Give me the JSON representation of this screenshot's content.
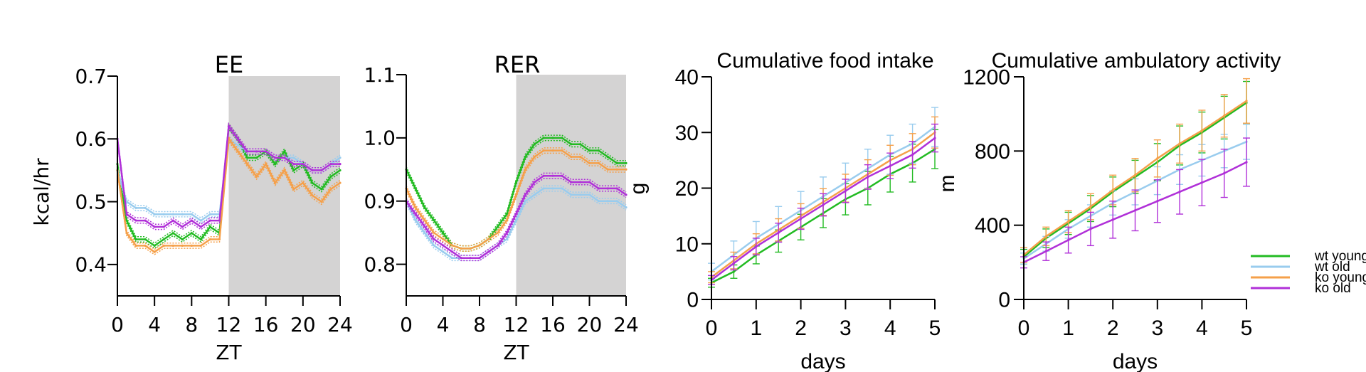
{
  "legend": {
    "entries": [
      {
        "label": "wt young",
        "color": "#22bb22"
      },
      {
        "label": "wt old",
        "color": "#99ccee"
      },
      {
        "label": "ko young",
        "color": "#f5a04a"
      },
      {
        "label": "ko old",
        "color": "#b030d8"
      }
    ]
  },
  "shading_color": "#d4d3d3",
  "chart_data": [
    {
      "type": "line",
      "title": "EE",
      "xlabel": "ZT",
      "ylabel": "kcal/hr",
      "xlim": [
        0,
        24
      ],
      "ylim": [
        0.35,
        0.7
      ],
      "xticks": [
        0,
        4,
        8,
        12,
        16,
        20,
        24
      ],
      "xtick_labels": [
        "0",
        "4",
        "8",
        "12",
        "16",
        "20",
        "24"
      ],
      "yticks": [
        0.4,
        0.5,
        0.6,
        0.7
      ],
      "ytick_labels": [
        "0.4",
        "0.5",
        "0.6",
        "0.7"
      ],
      "shaded_region": [
        12,
        24
      ],
      "x": [
        0,
        1,
        2,
        3,
        4,
        5,
        6,
        7,
        8,
        9,
        10,
        11,
        12,
        13,
        14,
        15,
        16,
        17,
        18,
        19,
        20,
        21,
        22,
        23,
        24
      ],
      "series": [
        {
          "name": "wt young",
          "values": [
            0.56,
            0.47,
            0.44,
            0.44,
            0.43,
            0.44,
            0.45,
            0.44,
            0.45,
            0.44,
            0.46,
            0.45,
            0.62,
            0.6,
            0.57,
            0.57,
            0.58,
            0.56,
            0.58,
            0.55,
            0.56,
            0.53,
            0.52,
            0.54,
            0.55
          ]
        },
        {
          "name": "wt old",
          "values": [
            0.55,
            0.5,
            0.49,
            0.49,
            0.48,
            0.48,
            0.48,
            0.48,
            0.48,
            0.47,
            0.48,
            0.48,
            0.6,
            0.59,
            0.58,
            0.58,
            0.58,
            0.57,
            0.57,
            0.57,
            0.56,
            0.55,
            0.55,
            0.56,
            0.57
          ]
        },
        {
          "name": "ko young",
          "values": [
            0.55,
            0.45,
            0.43,
            0.43,
            0.42,
            0.43,
            0.43,
            0.43,
            0.43,
            0.43,
            0.44,
            0.44,
            0.6,
            0.58,
            0.56,
            0.54,
            0.56,
            0.53,
            0.55,
            0.52,
            0.53,
            0.51,
            0.5,
            0.52,
            0.53
          ]
        },
        {
          "name": "ko old",
          "values": [
            0.6,
            0.48,
            0.47,
            0.47,
            0.46,
            0.46,
            0.47,
            0.46,
            0.47,
            0.46,
            0.47,
            0.47,
            0.62,
            0.6,
            0.58,
            0.58,
            0.58,
            0.57,
            0.57,
            0.56,
            0.56,
            0.55,
            0.55,
            0.56,
            0.56
          ]
        }
      ]
    },
    {
      "type": "line",
      "title": "RER",
      "xlabel": "ZT",
      "ylabel": "",
      "xlim": [
        0,
        24
      ],
      "ylim": [
        0.75,
        1.1
      ],
      "xticks": [
        0,
        4,
        8,
        12,
        16,
        20,
        24
      ],
      "xtick_labels": [
        "0",
        "4",
        "8",
        "12",
        "16",
        "20",
        "24"
      ],
      "yticks": [
        0.8,
        0.9,
        1.0,
        1.1
      ],
      "ytick_labels": [
        "0.8",
        "0.9",
        "1.0",
        "1.1"
      ],
      "shaded_region": [
        12,
        24
      ],
      "x": [
        0,
        1,
        2,
        3,
        4,
        5,
        6,
        7,
        8,
        9,
        10,
        11,
        12,
        13,
        14,
        15,
        16,
        17,
        18,
        19,
        20,
        21,
        22,
        23,
        24
      ],
      "series": [
        {
          "name": "wt young",
          "values": [
            0.95,
            0.92,
            0.89,
            0.87,
            0.85,
            0.83,
            0.825,
            0.825,
            0.83,
            0.84,
            0.86,
            0.88,
            0.93,
            0.97,
            0.99,
            1.0,
            1.0,
            1.0,
            0.99,
            0.99,
            0.98,
            0.98,
            0.97,
            0.96,
            0.96
          ]
        },
        {
          "name": "wt old",
          "values": [
            0.9,
            0.87,
            0.85,
            0.83,
            0.82,
            0.81,
            0.81,
            0.81,
            0.81,
            0.82,
            0.83,
            0.84,
            0.87,
            0.9,
            0.91,
            0.92,
            0.92,
            0.92,
            0.91,
            0.91,
            0.91,
            0.9,
            0.9,
            0.9,
            0.89
          ]
        },
        {
          "name": "ko young",
          "values": [
            0.92,
            0.89,
            0.87,
            0.85,
            0.84,
            0.83,
            0.825,
            0.825,
            0.83,
            0.84,
            0.85,
            0.87,
            0.91,
            0.95,
            0.97,
            0.98,
            0.98,
            0.98,
            0.97,
            0.97,
            0.96,
            0.96,
            0.95,
            0.95,
            0.95
          ]
        },
        {
          "name": "ko old",
          "values": [
            0.9,
            0.88,
            0.86,
            0.84,
            0.83,
            0.82,
            0.81,
            0.81,
            0.81,
            0.82,
            0.83,
            0.85,
            0.88,
            0.91,
            0.93,
            0.94,
            0.94,
            0.94,
            0.93,
            0.93,
            0.93,
            0.92,
            0.92,
            0.92,
            0.91
          ]
        }
      ]
    },
    {
      "type": "line",
      "title": "Cumulative food intake",
      "xlabel": "days",
      "ylabel": "g",
      "xlim": [
        0,
        5
      ],
      "ylim": [
        0,
        40
      ],
      "xticks": [
        0,
        1,
        2,
        3,
        4,
        5
      ],
      "xtick_labels": [
        "0",
        "1",
        "2",
        "3",
        "4",
        "5"
      ],
      "yticks": [
        0,
        10,
        20,
        30,
        40
      ],
      "ytick_labels": [
        "0",
        "10",
        "20",
        "30",
        "40"
      ],
      "x": [
        0,
        0.5,
        1,
        1.5,
        2,
        2.5,
        3,
        3.5,
        4,
        4.5,
        5
      ],
      "series": [
        {
          "name": "wt young",
          "values": [
            3,
            5,
            8,
            10.5,
            13,
            15.5,
            18,
            20,
            22.5,
            24.5,
            27
          ],
          "error": [
            0.8,
            1.2,
            1.6,
            2.0,
            2.3,
            2.6,
            2.8,
            3.0,
            3.2,
            3.4,
            3.5
          ]
        },
        {
          "name": "wt old",
          "values": [
            5,
            8,
            11,
            13.5,
            16,
            18.5,
            21,
            23.5,
            26,
            28,
            31
          ],
          "error": [
            1.5,
            2.5,
            3.0,
            3.2,
            3.4,
            3.5,
            3.5,
            3.5,
            3.5,
            3.5,
            3.5
          ]
        },
        {
          "name": "ko young",
          "values": [
            4,
            7,
            10,
            12.5,
            15,
            17.5,
            20,
            22.5,
            25,
            27,
            30
          ],
          "error": [
            1.0,
            1.5,
            1.8,
            2.0,
            2.2,
            2.4,
            2.5,
            2.6,
            2.7,
            2.8,
            2.8
          ]
        },
        {
          "name": "ko old",
          "values": [
            3.5,
            6.5,
            9.5,
            12,
            14.5,
            17,
            19.5,
            22,
            24,
            26,
            29
          ],
          "error": [
            0.8,
            1.2,
            1.5,
            1.7,
            1.9,
            2.0,
            2.1,
            2.2,
            2.3,
            2.4,
            2.5
          ]
        }
      ]
    },
    {
      "type": "line",
      "title": "Cumulative ambulatory activity",
      "xlabel": "days",
      "ylabel": "m",
      "xlim": [
        0,
        5
      ],
      "ylim": [
        0,
        1200
      ],
      "xticks": [
        0,
        1,
        2,
        3,
        4,
        5
      ],
      "xtick_labels": [
        "0",
        "1",
        "2",
        "3",
        "4",
        "5"
      ],
      "yticks": [
        0,
        400,
        800,
        1200
      ],
      "ytick_labels": [
        "0",
        "400",
        "800",
        "1200"
      ],
      "x": [
        0,
        0.5,
        1,
        1.5,
        2,
        2.5,
        3,
        3.5,
        4,
        4.5,
        5
      ],
      "series": [
        {
          "name": "wt young",
          "values": [
            230,
            330,
            410,
            490,
            580,
            660,
            740,
            830,
            900,
            980,
            1060
          ],
          "error": [
            40,
            50,
            60,
            70,
            80,
            90,
            100,
            105,
            110,
            115,
            115
          ]
        },
        {
          "name": "wt old",
          "values": [
            220,
            300,
            380,
            450,
            520,
            580,
            640,
            700,
            750,
            800,
            850
          ],
          "error": [
            30,
            40,
            50,
            60,
            65,
            70,
            75,
            80,
            85,
            90,
            95
          ]
        },
        {
          "name": "ko young",
          "values": [
            240,
            340,
            420,
            500,
            590,
            670,
            760,
            840,
            910,
            990,
            1070
          ],
          "error": [
            40,
            50,
            60,
            70,
            80,
            90,
            100,
            105,
            110,
            115,
            120
          ]
        },
        {
          "name": "ko old",
          "values": [
            200,
            260,
            320,
            380,
            430,
            480,
            530,
            580,
            630,
            680,
            740
          ],
          "error": [
            30,
            50,
            70,
            90,
            100,
            110,
            115,
            120,
            125,
            130,
            130
          ]
        }
      ]
    }
  ]
}
